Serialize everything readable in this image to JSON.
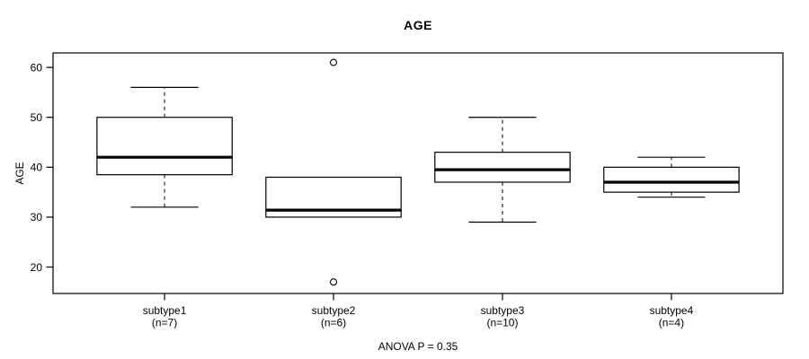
{
  "figure": {
    "title": "AGE",
    "annotation": "ANOVA P = 0.35"
  },
  "chart_data": {
    "type": "boxplot",
    "title": "AGE",
    "xlabel": "",
    "ylabel": "AGE",
    "ylim": [
      14.7,
      62.9
    ],
    "xlim": [
      0.34,
      4.66
    ],
    "yticks": [
      20,
      30,
      40,
      50,
      60
    ],
    "grid": false,
    "legend": "none",
    "annotation": "ANOVA P = 0.35",
    "categories": [
      "subtype1",
      "subtype2",
      "subtype3",
      "subtype4"
    ],
    "category_sublabels": [
      "(n=7)",
      "(n=6)",
      "(n=10)",
      "(n=4)"
    ],
    "series": [
      {
        "name": "subtype1",
        "n": 7,
        "whisker_low": 32,
        "q1": 38.5,
        "median": 42,
        "q3": 50,
        "whisker_high": 56,
        "outliers": []
      },
      {
        "name": "subtype2",
        "n": 6,
        "whisker_low": 30,
        "q1": 30,
        "median": 31.4,
        "q3": 38,
        "whisker_high": 38,
        "outliers": [
          61,
          17
        ]
      },
      {
        "name": "subtype3",
        "n": 10,
        "whisker_low": 29,
        "q1": 37,
        "median": 39.5,
        "q3": 43,
        "whisker_high": 50,
        "outliers": []
      },
      {
        "name": "subtype4",
        "n": 4,
        "whisker_low": 34,
        "q1": 35,
        "median": 37,
        "q3": 40,
        "whisker_high": 42,
        "outliers": []
      }
    ],
    "colors": {
      "line": "#000000",
      "box_fill": "#ffffff",
      "background": "#ffffff"
    }
  }
}
